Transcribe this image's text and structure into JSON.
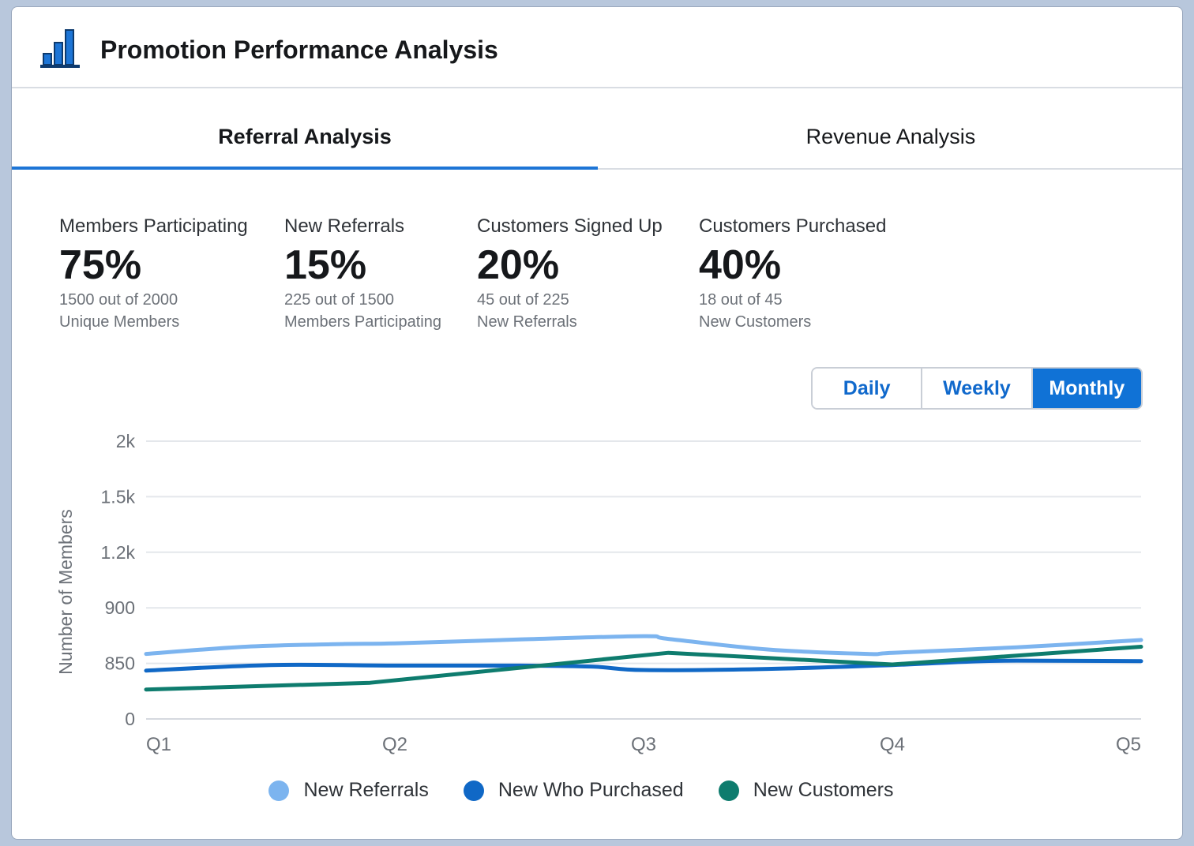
{
  "header": {
    "title": "Promotion Performance Analysis",
    "icon": "bar-chart-icon"
  },
  "tabs": [
    {
      "label": "Referral Analysis",
      "active": true
    },
    {
      "label": "Revenue Analysis",
      "active": false
    }
  ],
  "stats": [
    {
      "label": "Members Participating",
      "value": "75%",
      "sub1": "1500 out of 2000",
      "sub2": "Unique Members"
    },
    {
      "label": "New Referrals",
      "value": "15%",
      "sub1": "225 out of 1500",
      "sub2": "Members Participating"
    },
    {
      "label": "Customers Signed Up",
      "value": "20%",
      "sub1": "45 out of 225",
      "sub2": "New Referrals"
    },
    {
      "label": "Customers Purchased",
      "value": "40%",
      "sub1": "18 out of 45",
      "sub2": "New Customers"
    }
  ],
  "period": {
    "options": [
      "Daily",
      "Weekly",
      "Monthly"
    ],
    "selected": "Monthly"
  },
  "colors": {
    "accent": "#1d75d6",
    "new_referrals": "#7cb4ef",
    "new_who_purchased": "#1068c6",
    "new_customers": "#0e7c6e"
  },
  "chart_data": {
    "type": "line",
    "ylabel": "Number of Members",
    "y_ticks": [
      "0",
      "850",
      "900",
      "1.2k",
      "1.5k",
      "2k"
    ],
    "x_ticks": [
      "Q1",
      "Q2",
      "Q3",
      "Q4",
      "Q5"
    ],
    "grid": true,
    "legend_position": "bottom-center",
    "series": [
      {
        "name": "New Referrals",
        "color": "#7cb4ef",
        "points": [
          [
            1.0,
            1.17
          ],
          [
            1.4,
            1.3
          ],
          [
            1.8,
            1.35
          ],
          [
            2.0,
            1.36
          ],
          [
            2.5,
            1.43
          ],
          [
            3.0,
            1.49
          ],
          [
            3.1,
            1.44
          ],
          [
            3.5,
            1.25
          ],
          [
            3.9,
            1.17
          ],
          [
            4.0,
            1.19
          ],
          [
            4.5,
            1.29
          ],
          [
            5.0,
            1.42
          ]
        ]
      },
      {
        "name": "New Who Purchased",
        "color": "#1068c6",
        "points": [
          [
            1.0,
            0.87
          ],
          [
            1.5,
            0.97
          ],
          [
            2.0,
            0.96
          ],
          [
            2.5,
            0.96
          ],
          [
            2.8,
            0.94
          ],
          [
            3.0,
            0.88
          ],
          [
            3.5,
            0.9
          ],
          [
            4.0,
            0.97
          ],
          [
            4.3,
            1.03
          ],
          [
            4.5,
            1.05
          ],
          [
            5.0,
            1.04
          ]
        ]
      },
      {
        "name": "New Customers",
        "color": "#0e7c6e",
        "points": [
          [
            1.0,
            0.53
          ],
          [
            1.9,
            0.65
          ],
          [
            3.1,
            1.19
          ],
          [
            4.0,
            0.98
          ],
          [
            5.0,
            1.3
          ]
        ]
      }
    ]
  }
}
